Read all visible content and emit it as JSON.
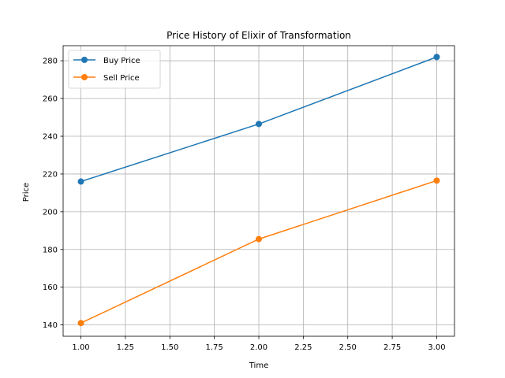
{
  "chart_data": {
    "type": "line",
    "title": "Price History of Elixir of Transformation",
    "xlabel": "Time",
    "ylabel": "Price",
    "x": [
      1.0,
      2.0,
      3.0
    ],
    "xlim": [
      0.9,
      3.1
    ],
    "ylim": [
      134.0,
      288.0
    ],
    "xticks": [
      "1.00",
      "1.25",
      "1.50",
      "1.75",
      "2.00",
      "2.25",
      "2.50",
      "2.75",
      "3.00"
    ],
    "yticks": [
      "140",
      "160",
      "180",
      "200",
      "220",
      "240",
      "260",
      "280"
    ],
    "grid": true,
    "legend_position": "top-left",
    "series": [
      {
        "name": "Buy Price",
        "color": "#1f77b4",
        "marker": "circle",
        "values": [
          216,
          246.5,
          282
        ]
      },
      {
        "name": "Sell Price",
        "color": "#ff7f0e",
        "marker": "circle",
        "values": [
          141,
          185.5,
          216.5
        ]
      }
    ]
  }
}
